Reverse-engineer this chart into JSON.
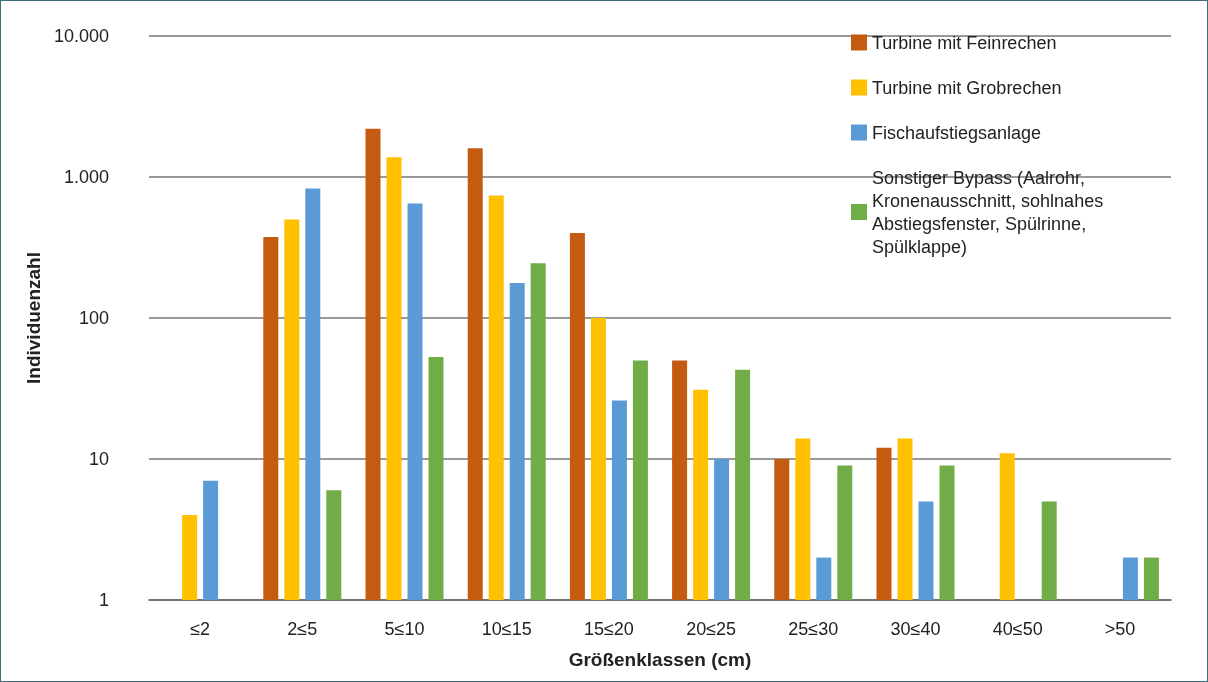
{
  "chart_data": {
    "type": "bar",
    "xlabel": "Größenklassen (cm)",
    "ylabel": "Individuenzahl",
    "log": "y",
    "grid": "y",
    "legend": "top right",
    "categories": [
      "≤2",
      "2≤5",
      "5≤10",
      "10≤15",
      "15≤20",
      "20≤25",
      "25≤30",
      "30≤40",
      "40≤50",
      ">50"
    ],
    "ylim": [
      1,
      10000
    ],
    "yticks": [
      1,
      10,
      100,
      {
        "value": 1000,
        "label": "1.000"
      },
      {
        "value": 10000,
        "label": "10.000"
      }
    ],
    "series": [
      {
        "name": "Turbine mit Feinrechen",
        "color": "#c55a11",
        "values": [
          null,
          375,
          2200,
          1600,
          400,
          50,
          10,
          12,
          null,
          null
        ]
      },
      {
        "name": "Turbine mit Grobrechen",
        "color": "#ffc000",
        "values": [
          4,
          500,
          1380,
          740,
          100,
          31,
          14,
          14,
          11,
          null
        ]
      },
      {
        "name": "Fischaufstiegsanlage",
        "color": "#5b9bd5",
        "values": [
          7,
          830,
          650,
          177,
          26,
          10,
          2,
          5,
          null,
          2
        ]
      },
      {
        "name": "Sonstiger Bypass (Aalrohr, Kronenausschnitt, sohlnahes Abstiegsfenster, Spülrinne, Spülklappe)",
        "color": "#70ad47",
        "values": [
          null,
          6,
          53,
          245,
          50,
          43,
          9,
          9,
          5,
          2
        ]
      }
    ]
  }
}
